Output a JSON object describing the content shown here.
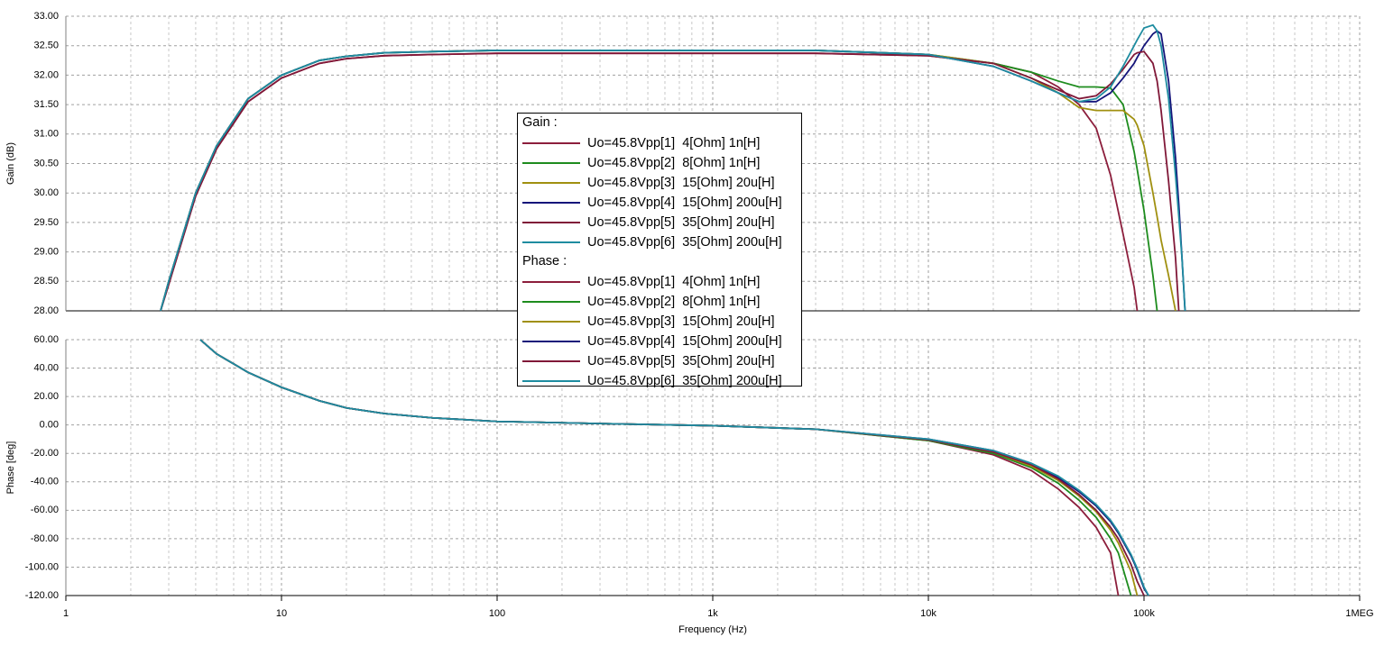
{
  "chart_data": [
    {
      "type": "line",
      "y_label": "Gain (dB)",
      "legend_title": "Gain :",
      "log_x": true,
      "grid": true,
      "xlim": [
        1,
        1000000
      ],
      "x": [
        2.75,
        3,
        4,
        5,
        7,
        10,
        15,
        20,
        30,
        50,
        100,
        300,
        1000,
        3000,
        10000,
        20000,
        30000,
        40000,
        50000,
        60000,
        70000,
        80000,
        90000,
        93000,
        100000,
        110000,
        115000,
        120000,
        130000,
        140000,
        145000,
        150000,
        155000
      ],
      "ylim": [
        28,
        33
      ],
      "yticks": [
        {
          "value": 28,
          "label": "28.00"
        },
        {
          "value": 28.5,
          "label": "28.50"
        },
        {
          "value": 29,
          "label": "29.00"
        },
        {
          "value": 29.5,
          "label": "29.50"
        },
        {
          "value": 30,
          "label": "30.00"
        },
        {
          "value": 30.5,
          "label": "30.50"
        },
        {
          "value": 31,
          "label": "31.00"
        },
        {
          "value": 31.5,
          "label": "31.50"
        },
        {
          "value": 32,
          "label": "32.00"
        },
        {
          "value": 32.5,
          "label": "32.50"
        },
        {
          "value": 33,
          "label": "33.00"
        }
      ],
      "series": [
        {
          "name": "Uo=45.8Vpp[1]  4[Ohm] 1n[H]",
          "color": "#8c1e3c",
          "values": [
            28.0,
            28.45,
            29.95,
            30.75,
            31.55,
            31.95,
            32.2,
            32.28,
            32.33,
            32.35,
            32.37,
            32.37,
            32.37,
            32.37,
            32.33,
            32.2,
            32.05,
            31.8,
            31.5,
            31.1,
            30.3,
            29.3,
            28.4,
            28.0,
            null,
            null,
            null,
            null,
            null,
            null,
            null,
            null,
            null
          ]
        },
        {
          "name": "Uo=45.8Vpp[2]  8[Ohm] 1n[H]",
          "color": "#1e8c1e",
          "values": [
            28.0,
            28.5,
            30.0,
            30.8,
            31.6,
            32.0,
            32.25,
            32.32,
            32.38,
            32.4,
            32.42,
            32.42,
            32.42,
            32.42,
            32.35,
            32.2,
            32.05,
            31.9,
            31.8,
            31.8,
            31.78,
            31.5,
            30.7,
            30.4,
            29.7,
            28.6,
            28.0,
            null,
            null,
            null,
            null,
            null,
            null
          ]
        },
        {
          "name": "Uo=45.8Vpp[3]  15[Ohm] 20u[H]",
          "color": "#a09010",
          "values": [
            28.0,
            28.5,
            30.0,
            30.8,
            31.6,
            32.0,
            32.25,
            32.32,
            32.38,
            32.4,
            32.42,
            32.42,
            32.42,
            32.42,
            32.35,
            32.2,
            31.95,
            31.7,
            31.45,
            31.4,
            31.4,
            31.4,
            31.25,
            31.15,
            30.8,
            30.0,
            29.6,
            29.2,
            28.6,
            28.0,
            null,
            null,
            null
          ]
        },
        {
          "name": "Uo=45.8Vpp[4]  15[Ohm] 200u[H]",
          "color": "#14147a",
          "values": [
            28.0,
            28.5,
            30.0,
            30.8,
            31.6,
            32.0,
            32.25,
            32.32,
            32.38,
            32.4,
            32.42,
            32.42,
            32.42,
            32.42,
            32.35,
            32.15,
            31.9,
            31.7,
            31.55,
            31.55,
            31.7,
            31.95,
            32.2,
            32.3,
            32.5,
            32.7,
            32.75,
            32.7,
            31.9,
            30.6,
            29.8,
            28.9,
            28.0
          ]
        },
        {
          "name": "Uo=45.8Vpp[5]  35[Ohm] 20u[H]",
          "color": "#801838",
          "values": [
            28.0,
            28.45,
            29.95,
            30.75,
            31.55,
            31.95,
            32.2,
            32.28,
            32.33,
            32.35,
            32.37,
            32.37,
            32.37,
            32.37,
            32.33,
            32.2,
            31.95,
            31.75,
            31.6,
            31.65,
            31.85,
            32.1,
            32.35,
            32.38,
            32.4,
            32.2,
            31.9,
            31.4,
            30.2,
            28.9,
            28.0,
            null,
            null
          ]
        },
        {
          "name": "Uo=45.8Vpp[6]  35[Ohm] 200u[H]",
          "color": "#1e8ca0",
          "values": [
            28.0,
            28.5,
            30.0,
            30.8,
            31.6,
            32.0,
            32.25,
            32.32,
            32.38,
            32.4,
            32.42,
            32.42,
            32.42,
            32.42,
            32.35,
            32.15,
            31.9,
            31.7,
            31.55,
            31.6,
            31.8,
            32.15,
            32.5,
            32.6,
            32.8,
            32.85,
            32.75,
            32.5,
            31.6,
            30.3,
            29.6,
            28.9,
            28.0
          ]
        }
      ]
    },
    {
      "type": "line",
      "y_label": "Phase [deg]",
      "x_label": "Frequency (Hz)",
      "legend_title": "Phase :",
      "log_x": true,
      "grid": true,
      "xlim": [
        1,
        1000000
      ],
      "xticks": [
        1,
        10,
        100,
        {
          "value": 1000,
          "label": "1k"
        },
        {
          "value": 10000,
          "label": "10k"
        },
        {
          "value": 100000,
          "label": "100k"
        },
        {
          "value": 1000000,
          "label": "1MEG"
        }
      ],
      "x": [
        4.2,
        5,
        7,
        10,
        15,
        20,
        30,
        50,
        100,
        300,
        1000,
        3000,
        10000,
        20000,
        30000,
        40000,
        50000,
        60000,
        70000,
        76000,
        87000,
        93000,
        100000,
        105000
      ],
      "ylim": [
        -120,
        60
      ],
      "yticks": [
        {
          "value": -120,
          "label": "-120.00"
        },
        {
          "value": -100,
          "label": "-100.00"
        },
        {
          "value": -80,
          "label": "-80.00"
        },
        {
          "value": -60,
          "label": "-60.00"
        },
        {
          "value": -40,
          "label": "-40.00"
        },
        {
          "value": -20,
          "label": "-20.00"
        },
        {
          "value": 0,
          "label": "0.00"
        },
        {
          "value": 20,
          "label": "20.00"
        },
        {
          "value": 40,
          "label": "40.00"
        },
        {
          "value": 60,
          "label": "60.00"
        }
      ],
      "series": [
        {
          "name": "Uo=45.8Vpp[1]  4[Ohm] 1n[H]",
          "color": "#8c1e3c",
          "values": [
            60,
            50,
            37,
            26.5,
            17,
            12,
            8,
            5,
            2.5,
            1,
            -0.5,
            -3,
            -11,
            -21,
            -32,
            -45,
            -58,
            -72,
            -90,
            -120,
            null,
            null,
            null,
            null
          ]
        },
        {
          "name": "Uo=45.8Vpp[2]  8[Ohm] 1n[H]",
          "color": "#1e8c1e",
          "values": [
            60,
            50,
            37,
            26.5,
            17,
            12,
            8,
            5,
            2.5,
            1,
            -0.5,
            -3,
            -11,
            -20,
            -30,
            -41,
            -53,
            -65,
            -80,
            -90,
            -120,
            null,
            null,
            null
          ]
        },
        {
          "name": "Uo=45.8Vpp[3]  15[Ohm] 20u[H]",
          "color": "#a09010",
          "values": [
            60,
            50,
            37,
            26.5,
            17,
            12,
            8,
            5,
            2.5,
            1,
            -0.5,
            -3,
            -10.5,
            -19,
            -29,
            -39,
            -50,
            -61,
            -74,
            -83,
            -103,
            -120,
            null,
            null
          ]
        },
        {
          "name": "Uo=45.8Vpp[4]  15[Ohm] 200u[H]",
          "color": "#14147a",
          "values": [
            60,
            50,
            37,
            26.5,
            17,
            12,
            8,
            5,
            2.5,
            1,
            -0.5,
            -3,
            -10,
            -18,
            -27,
            -37,
            -47,
            -57,
            -68,
            -76,
            -92,
            -102,
            -115,
            -120
          ]
        },
        {
          "name": "Uo=45.8Vpp[5]  35[Ohm] 20u[H]",
          "color": "#801838",
          "values": [
            60,
            50,
            37,
            26.5,
            17,
            12,
            8,
            5,
            2.5,
            1,
            -0.5,
            -3,
            -10.5,
            -19,
            -28,
            -38,
            -49,
            -60,
            -72,
            -80,
            -98,
            -110,
            -120,
            null
          ]
        },
        {
          "name": "Uo=45.8Vpp[6]  35[Ohm] 200u[H]",
          "color": "#1e8ca0",
          "values": [
            60,
            50,
            37,
            26.5,
            17,
            12,
            8,
            5,
            2.5,
            1,
            -0.5,
            -3,
            -10,
            -18,
            -27,
            -36,
            -46,
            -56,
            -67,
            -75,
            -91,
            -101,
            -114,
            -120
          ]
        }
      ]
    }
  ]
}
